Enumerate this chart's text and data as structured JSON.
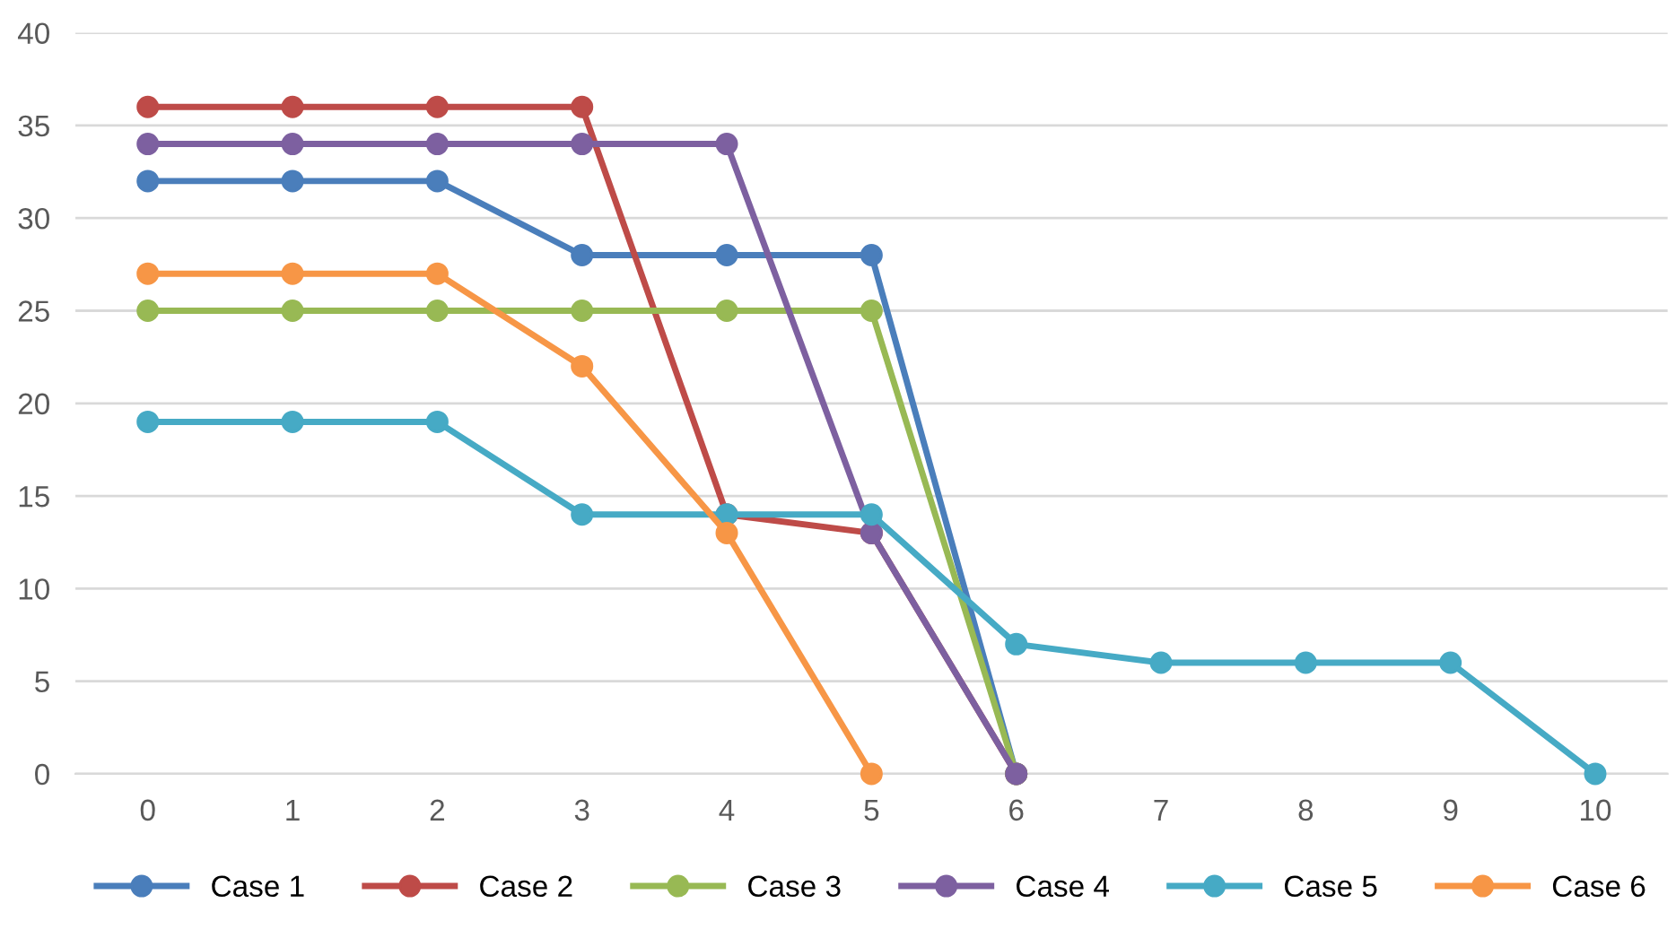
{
  "chart_data": {
    "type": "line",
    "marker": "circle",
    "line_style": "solid",
    "grid": "y",
    "legend": "bottom",
    "xlim": [
      -0.5,
      10.5
    ],
    "xticks": [
      0,
      1,
      2,
      3,
      4,
      5,
      6,
      7,
      8,
      9,
      10
    ],
    "ylim": [
      0,
      40
    ],
    "yticks": [
      0,
      5,
      10,
      15,
      20,
      25,
      30,
      35,
      40
    ],
    "series": [
      {
        "name": "Case 1",
        "color": "#4a7ebb",
        "x": [
          0,
          1,
          2,
          3,
          4,
          5,
          6
        ],
        "values": [
          32,
          32,
          32,
          28,
          28,
          28,
          0
        ]
      },
      {
        "name": "Case 2",
        "color": "#be4b48",
        "x": [
          0,
          1,
          2,
          3,
          4,
          5,
          6
        ],
        "values": [
          36,
          36,
          36,
          36,
          14,
          13,
          0
        ]
      },
      {
        "name": "Case 3",
        "color": "#98b954",
        "x": [
          0,
          1,
          2,
          3,
          4,
          5,
          6
        ],
        "values": [
          25,
          25,
          25,
          25,
          25,
          25,
          0
        ]
      },
      {
        "name": "Case 4",
        "color": "#7d60a0",
        "x": [
          0,
          1,
          2,
          3,
          4,
          5,
          6
        ],
        "values": [
          34,
          34,
          34,
          34,
          34,
          13,
          0
        ]
      },
      {
        "name": "Case 5",
        "color": "#46aac5",
        "x": [
          0,
          1,
          2,
          3,
          4,
          5,
          6,
          7,
          8,
          9,
          10
        ],
        "values": [
          19,
          19,
          19,
          14,
          14,
          14,
          7,
          6,
          6,
          6,
          0
        ]
      },
      {
        "name": "Case 6",
        "color": "#f79646",
        "x": [
          0,
          1,
          2,
          3,
          4,
          5
        ],
        "values": [
          27,
          27,
          27,
          22,
          13,
          0
        ]
      }
    ]
  }
}
